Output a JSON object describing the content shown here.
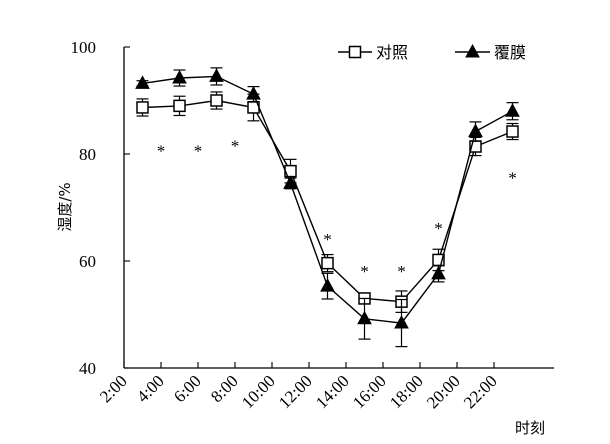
{
  "chart_data": {
    "type": "line",
    "xlabel": "时刻",
    "ylabel": "湿度/%",
    "ylim": [
      40,
      100
    ],
    "yticks": [
      "40",
      "60",
      "80",
      "100"
    ],
    "categories": [
      "2:00",
      "4:00",
      "6:00",
      "8:00",
      "10:00",
      "12:00",
      "14:00",
      "16:00",
      "18:00",
      "20:00",
      "22:00"
    ],
    "legend_position": "top-right",
    "grid": false,
    "series": [
      {
        "name": "对照",
        "marker": "open-square",
        "x": [
          "3:00",
          "5:00",
          "7:00",
          "9:00",
          "11:00",
          "13:00",
          "15:00",
          "17:00",
          "19:00",
          "21:00",
          "23:00"
        ],
        "values": [
          88.7,
          89.0,
          90.0,
          88.7,
          76.8,
          59.6,
          53.0,
          52.4,
          60.2,
          81.4,
          84.2
        ],
        "error": [
          1.6,
          1.8,
          1.6,
          2.5,
          2.2,
          1.6,
          0.7,
          2.0,
          2.0,
          1.7,
          1.5
        ]
      },
      {
        "name": "覆膜",
        "marker": "filled-triangle",
        "x": [
          "3:00",
          "5:00",
          "7:00",
          "9:00",
          "11:00",
          "13:00",
          "15:00",
          "17:00",
          "19:00",
          "21:00",
          "23:00"
        ],
        "values": [
          93.2,
          94.2,
          94.5,
          91.2,
          74.5,
          55.3,
          49.2,
          48.4,
          57.6,
          84.2,
          88.0
        ],
        "error": [
          0.5,
          1.5,
          1.6,
          1.4,
          1.0,
          2.4,
          3.8,
          4.4,
          1.5,
          1.8,
          1.6
        ]
      }
    ],
    "annotations": [
      {
        "text": "*",
        "x": "4:00",
        "y": 81
      },
      {
        "text": "*",
        "x": "6:00",
        "y": 81
      },
      {
        "text": "*",
        "x": "8:00",
        "y": 82
      },
      {
        "text": "*",
        "x": "13:00",
        "y": 64.5
      },
      {
        "text": "*",
        "x": "15:00",
        "y": 58.5
      },
      {
        "text": "*",
        "x": "17:00",
        "y": 58.5
      },
      {
        "text": "*",
        "x": "19:00",
        "y": 66.5
      },
      {
        "text": "*",
        "x": "23:00",
        "y": 76
      }
    ]
  }
}
